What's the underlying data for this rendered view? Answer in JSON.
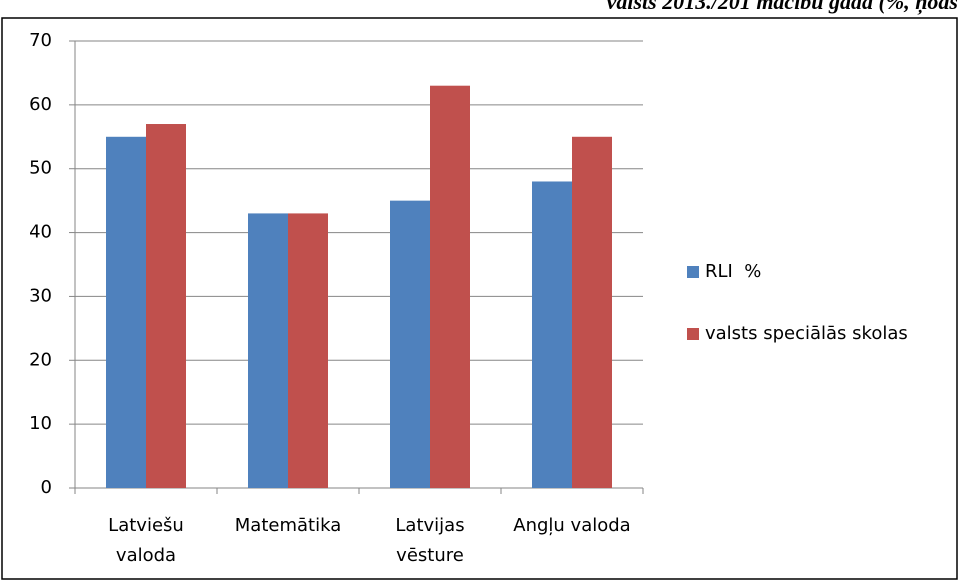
{
  "chart_data": {
    "type": "bar",
    "title": "valsts 2013./201 mācību gadā (%, ņoās",
    "categories": [
      "Latviešu\nvaloda",
      "Matemātika",
      "Latvijas\nvēsture",
      "Angļu valoda"
    ],
    "series": [
      {
        "name": "RLI  %",
        "color": "#4f81bd",
        "values": [
          55,
          43,
          45,
          48
        ]
      },
      {
        "name": "valsts speciālās skolas",
        "color": "#c0504d",
        "values": [
          57,
          43,
          63,
          55
        ]
      }
    ],
    "ylim": [
      0,
      70
    ],
    "yticks": [
      0,
      10,
      20,
      30,
      40,
      50,
      60,
      70
    ],
    "grid": true,
    "legend": "right"
  }
}
